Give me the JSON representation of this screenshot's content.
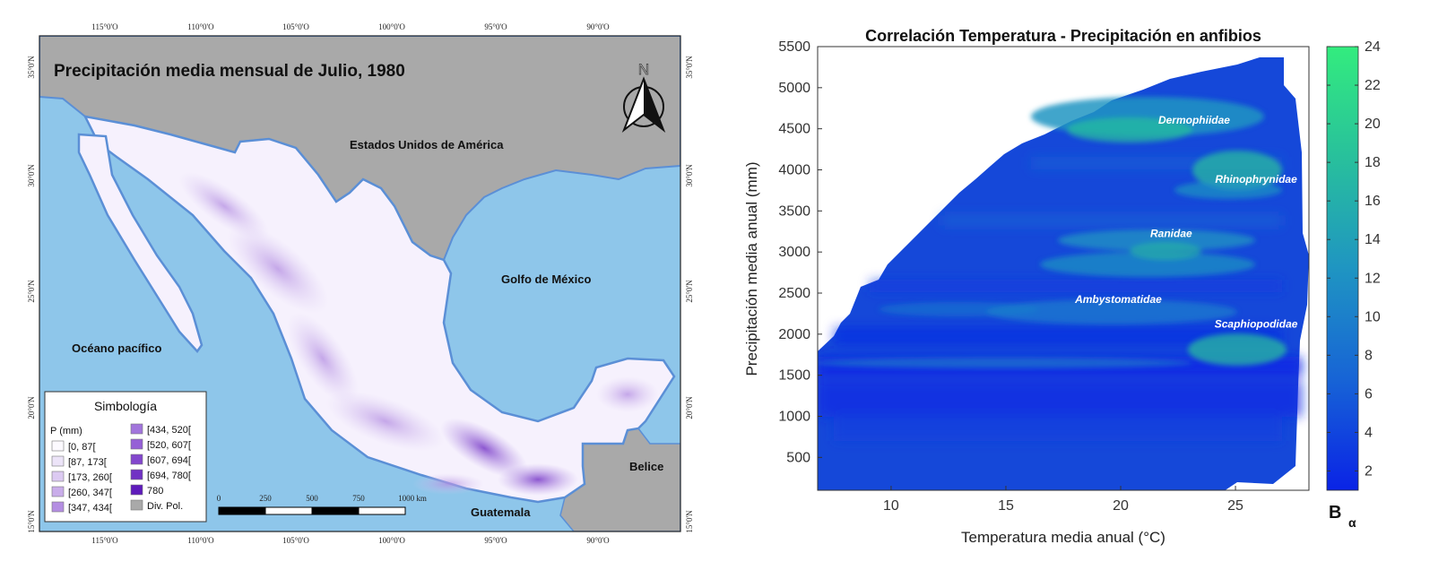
{
  "map": {
    "title": "Precipitación media mensual de Julio, 1980",
    "north_label": "N",
    "lon_ticks": [
      "115°0'O",
      "110°0'O",
      "105°0'O",
      "100°0'O",
      "95°0'O",
      "90°0'O"
    ],
    "lat_ticks": [
      "35°0'N",
      "30°0'N",
      "25°0'N",
      "20°0'N",
      "15°0'N"
    ],
    "place_labels": {
      "usa": "Estados Unidos de América",
      "gulf": "Golfo de México",
      "pacific": "Océano pacífico",
      "belize": "Belice",
      "guatemala": "Guatemala"
    },
    "legend": {
      "title": "Simbología",
      "unit": "P (mm)",
      "items": [
        {
          "label": "[0, 87[",
          "color": "#fcfaff"
        },
        {
          "label": "[87, 173[",
          "color": "#ece4f8"
        },
        {
          "label": "[173, 260[",
          "color": "#dccaf2"
        },
        {
          "label": "[260, 347[",
          "color": "#c9adea"
        },
        {
          "label": "[347, 434[",
          "color": "#b48ee2"
        },
        {
          "label": "[434, 520[",
          "color": "#a275dc"
        },
        {
          "label": "[520, 607[",
          "color": "#9560d6"
        },
        {
          "label": "[607, 694[",
          "color": "#8347cd"
        },
        {
          "label": "[694, 780[",
          "color": "#7132c4"
        },
        {
          "label": "780",
          "color": "#5e1bbb"
        },
        {
          "label": "Div. Pol.",
          "color": "#a9a9a9"
        }
      ]
    },
    "scalebar": {
      "ticks": [
        "0",
        "250",
        "500",
        "750",
        "1000 km"
      ]
    },
    "colors": {
      "ocean": "#8ec6ea",
      "land": "#a9a9a9",
      "mexico": "#f6f1fd",
      "coast": "#5b8fd6"
    }
  },
  "chart_data": {
    "type": "heatmap",
    "title": "Correlación Temperatura - Precipitación en anfibios",
    "xlabel": "Temperatura media anual (°C)",
    "ylabel": "Precipitación media anual (mm)",
    "xlim": [
      6.8,
      28.2
    ],
    "ylim": [
      100,
      5500
    ],
    "xticks": [
      10,
      15,
      20,
      25
    ],
    "yticks": [
      500,
      1000,
      1500,
      2000,
      2500,
      3000,
      3500,
      4000,
      4500,
      5000,
      5500
    ],
    "colorbar": {
      "label": "B",
      "label_sub": "α",
      "min": 1,
      "max": 24,
      "ticks": [
        2,
        4,
        6,
        8,
        10,
        12,
        14,
        16,
        18,
        20,
        22,
        24
      ],
      "colors": [
        "#0a23e6",
        "#1764d6",
        "#1f95c2",
        "#28c09c",
        "#33ec7e"
      ]
    },
    "annotations": [
      {
        "text": "Dermophiidae",
        "x": 23.2,
        "y": 4560
      },
      {
        "text": "Rhinophrynidae",
        "x": 25.9,
        "y": 3840
      },
      {
        "text": "Ranidae",
        "x": 22.2,
        "y": 3180
      },
      {
        "text": "Ambystomatidae",
        "x": 19.9,
        "y": 2380
      },
      {
        "text": "Scaphiopodidae",
        "x": 25.9,
        "y": 2080
      }
    ]
  }
}
